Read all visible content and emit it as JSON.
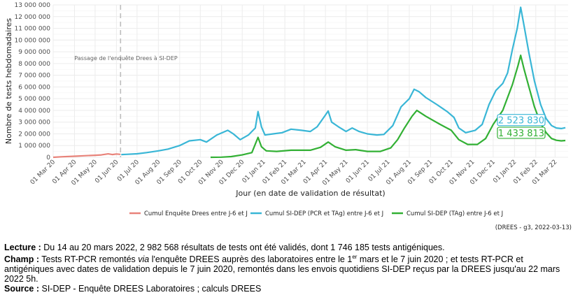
{
  "chart_data": {
    "type": "line",
    "title": "",
    "ylabel": "Nombre de tests hebdomadaires",
    "xlabel": "Jour (en date de validation de résultat)",
    "ylim": [
      0,
      13000000
    ],
    "y_ticks": [
      "0",
      "1 000 000",
      "2 000 000",
      "3 000 000",
      "4 000 000",
      "5 000 000",
      "6 000 000",
      "7 000 000",
      "8 000 000",
      "9 000 000",
      "10 000 000",
      "11 000 000",
      "12 000 000",
      "13 000 000"
    ],
    "x_ticks": [
      "01 Mar 20",
      "01 Apr 20",
      "01 May 20",
      "01 Jun 20",
      "01 Jul 20",
      "01 Aug 20",
      "01 Sep 20",
      "01 Oct 20",
      "01 Nov 20",
      "01 Dec 20",
      "01 Jan 21",
      "01 Feb 21",
      "01 Mar 21",
      "01 Apr 21",
      "01 May 21",
      "01 Jun 21",
      "01 Jul 21",
      "01 Aug 21",
      "01 Sep 21",
      "01 Oct 21",
      "01 Nov 21",
      "01 Dec 21",
      "01 Jan 22",
      "01 Feb 22",
      "01 Mar 22"
    ],
    "xlim": [
      "2020-03-01",
      "2022-03-20"
    ],
    "vline": {
      "date": "2020-06-07",
      "label": "Passage de l'enquête Drees à SI-DEP"
    },
    "legend_position": "bottom",
    "grid": true,
    "series": [
      {
        "name": "Cumul Enquête Drees entre J-6 et J",
        "color": "#e8837a",
        "points": [
          [
            "2020-03-01",
            0
          ],
          [
            "2020-03-15",
            50000
          ],
          [
            "2020-04-01",
            90000
          ],
          [
            "2020-04-15",
            130000
          ],
          [
            "2020-05-01",
            170000
          ],
          [
            "2020-05-10",
            200000
          ],
          [
            "2020-05-20",
            290000
          ],
          [
            "2020-05-26",
            230000
          ],
          [
            "2020-06-01",
            280000
          ],
          [
            "2020-06-07",
            250000
          ]
        ]
      },
      {
        "name": "Cumul SI-DEP (PCR et TAg) entre J-6 et J",
        "color": "#39b6d6",
        "points": [
          [
            "2020-06-08",
            230000
          ],
          [
            "2020-06-15",
            250000
          ],
          [
            "2020-07-01",
            300000
          ],
          [
            "2020-07-15",
            400000
          ],
          [
            "2020-08-01",
            550000
          ],
          [
            "2020-08-15",
            700000
          ],
          [
            "2020-09-01",
            1000000
          ],
          [
            "2020-09-15",
            1400000
          ],
          [
            "2020-10-01",
            1500000
          ],
          [
            "2020-10-10",
            1300000
          ],
          [
            "2020-10-25",
            1900000
          ],
          [
            "2020-11-10",
            2300000
          ],
          [
            "2020-11-18",
            2000000
          ],
          [
            "2020-11-28",
            1500000
          ],
          [
            "2020-12-10",
            1900000
          ],
          [
            "2020-12-20",
            2500000
          ],
          [
            "2020-12-24",
            3900000
          ],
          [
            "2020-12-29",
            2600000
          ],
          [
            "2021-01-03",
            1900000
          ],
          [
            "2021-01-15",
            2000000
          ],
          [
            "2021-01-28",
            2100000
          ],
          [
            "2021-02-10",
            2400000
          ],
          [
            "2021-02-25",
            2300000
          ],
          [
            "2021-03-10",
            2200000
          ],
          [
            "2021-03-20",
            2600000
          ],
          [
            "2021-04-01",
            3600000
          ],
          [
            "2021-04-05",
            3950000
          ],
          [
            "2021-04-10",
            3000000
          ],
          [
            "2021-04-20",
            2600000
          ],
          [
            "2021-05-01",
            2200000
          ],
          [
            "2021-05-10",
            2500000
          ],
          [
            "2021-05-20",
            2200000
          ],
          [
            "2021-06-01",
            2000000
          ],
          [
            "2021-06-15",
            1900000
          ],
          [
            "2021-06-25",
            1950000
          ],
          [
            "2021-07-08",
            2700000
          ],
          [
            "2021-07-20",
            4300000
          ],
          [
            "2021-08-01",
            5000000
          ],
          [
            "2021-08-08",
            5800000
          ],
          [
            "2021-08-15",
            5600000
          ],
          [
            "2021-08-25",
            5100000
          ],
          [
            "2021-09-10",
            4500000
          ],
          [
            "2021-09-25",
            3900000
          ],
          [
            "2021-10-05",
            3400000
          ],
          [
            "2021-10-12",
            2500000
          ],
          [
            "2021-10-22",
            2100000
          ],
          [
            "2021-11-05",
            2300000
          ],
          [
            "2021-11-15",
            2800000
          ],
          [
            "2021-11-25",
            4500000
          ],
          [
            "2021-12-05",
            5700000
          ],
          [
            "2021-12-15",
            6300000
          ],
          [
            "2021-12-22",
            7200000
          ],
          [
            "2021-12-29",
            9200000
          ],
          [
            "2022-01-05",
            11000000
          ],
          [
            "2022-01-10",
            12800000
          ],
          [
            "2022-01-15",
            11200000
          ],
          [
            "2022-01-22",
            8900000
          ],
          [
            "2022-01-30",
            6500000
          ],
          [
            "2022-02-08",
            4500000
          ],
          [
            "2022-02-16",
            3300000
          ],
          [
            "2022-02-24",
            2700000
          ],
          [
            "2022-03-03",
            2500000
          ],
          [
            "2022-03-10",
            2450000
          ],
          [
            "2022-03-16",
            2523830
          ]
        ]
      },
      {
        "name": "Cumul SI-DEP (TAg) entre J-6 et J",
        "color": "#32b034",
        "points": [
          [
            "2020-10-16",
            0
          ],
          [
            "2020-11-01",
            10000
          ],
          [
            "2020-11-15",
            60000
          ],
          [
            "2020-12-01",
            200000
          ],
          [
            "2020-12-15",
            400000
          ],
          [
            "2020-12-24",
            1700000
          ],
          [
            "2020-12-29",
            900000
          ],
          [
            "2021-01-05",
            550000
          ],
          [
            "2021-01-20",
            500000
          ],
          [
            "2021-02-10",
            600000
          ],
          [
            "2021-03-10",
            600000
          ],
          [
            "2021-03-25",
            850000
          ],
          [
            "2021-04-05",
            1300000
          ],
          [
            "2021-04-15",
            900000
          ],
          [
            "2021-05-01",
            600000
          ],
          [
            "2021-05-15",
            650000
          ],
          [
            "2021-06-01",
            500000
          ],
          [
            "2021-06-20",
            500000
          ],
          [
            "2021-07-05",
            800000
          ],
          [
            "2021-07-15",
            1500000
          ],
          [
            "2021-07-25",
            2500000
          ],
          [
            "2021-08-05",
            3500000
          ],
          [
            "2021-08-12",
            4000000
          ],
          [
            "2021-08-25",
            3500000
          ],
          [
            "2021-09-15",
            2800000
          ],
          [
            "2021-10-01",
            2300000
          ],
          [
            "2021-10-12",
            1500000
          ],
          [
            "2021-10-25",
            1100000
          ],
          [
            "2021-11-08",
            1100000
          ],
          [
            "2021-11-20",
            1600000
          ],
          [
            "2021-12-01",
            2800000
          ],
          [
            "2021-12-15",
            4000000
          ],
          [
            "2021-12-29",
            6200000
          ],
          [
            "2022-01-06",
            7800000
          ],
          [
            "2022-01-10",
            8700000
          ],
          [
            "2022-01-15",
            7500000
          ],
          [
            "2022-01-22",
            6000000
          ],
          [
            "2022-01-30",
            4300000
          ],
          [
            "2022-02-08",
            2900000
          ],
          [
            "2022-02-16",
            2100000
          ],
          [
            "2022-02-24",
            1600000
          ],
          [
            "2022-03-03",
            1450000
          ],
          [
            "2022-03-10",
            1400000
          ],
          [
            "2022-03-16",
            1433813
          ]
        ]
      }
    ],
    "end_labels": [
      {
        "text": "2 523 830",
        "series": 1
      },
      {
        "text": "1 433 813",
        "series": 2
      }
    ]
  },
  "credit": "(DREES - g3, 2022-03-13)",
  "notes": {
    "lecture_label": "Lecture :",
    "lecture_text": "Du 14 au 20 mars 2022, 2 982 568 résultats de tests ont été validés, dont 1 746 185 tests antigéniques.",
    "champ_label": "Champ :",
    "champ_text_1": "Tests RT-PCR remontés ",
    "champ_via": "via",
    "champ_text_2": " l'enquête DREES auprès des laboratoires entre le 1",
    "champ_sup": "er",
    "champ_text_3": " mars et le 7 juin 2020 ; et tests RT-PCR et antigéniques avec dates de validation depuis le 7 juin 2020, remontés dans les envois quotidiens SI-DEP reçus par la DREES jusqu'au 22 mars 2022 5h.",
    "source_label": "Source :",
    "source_text": "SI-DEP - Enquête DREES Laboratoires ; calculs DREES"
  }
}
